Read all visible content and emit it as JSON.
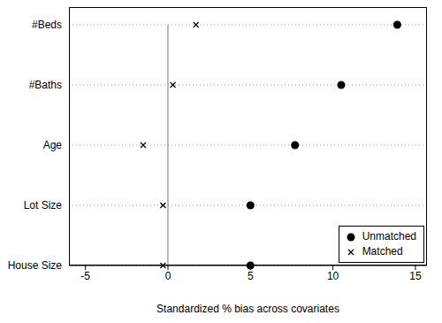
{
  "chart_data": {
    "type": "dot",
    "x_label": "Standardized % bias across covariates",
    "categories": [
      "#Beds",
      "#Baths",
      "Age",
      "Lot Size",
      "House Size"
    ],
    "series": [
      {
        "name": "Unmatched",
        "color": "#000000",
        "marker": "circle",
        "values": [
          13.9,
          10.5,
          7.7,
          5.0,
          5.0
        ]
      },
      {
        "name": "Matched",
        "color": "#000000",
        "marker": "x",
        "values": [
          1.7,
          0.3,
          -1.5,
          -0.3,
          -0.3
        ]
      }
    ],
    "xlim": [
      -6,
      15.7
    ],
    "xticks": [
      -5,
      0,
      5,
      10,
      15
    ],
    "xline": 0,
    "grid": true,
    "legend": "lower right",
    "orientation": "horizontal"
  }
}
